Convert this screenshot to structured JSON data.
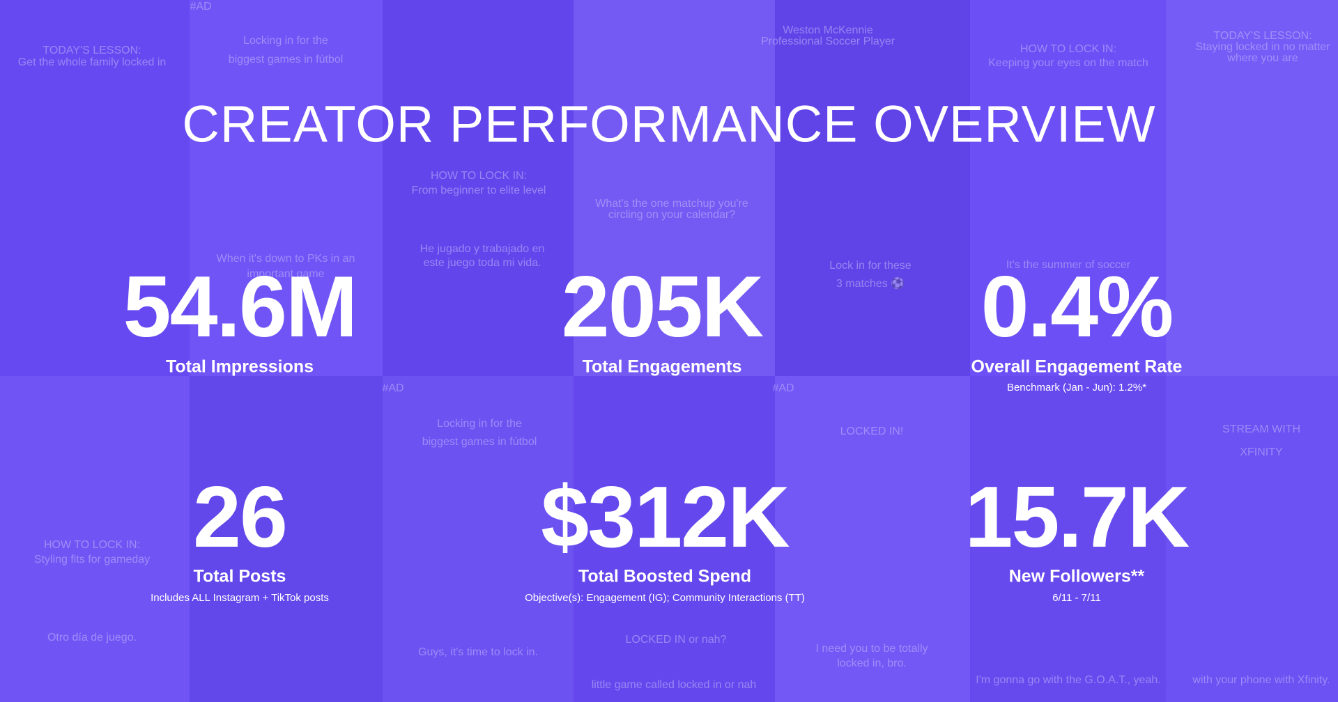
{
  "title": "CREATOR PERFORMANCE OVERVIEW",
  "metrics": [
    {
      "value": "54.6M",
      "label": "Total Impressions"
    },
    {
      "value": "205K",
      "label": "Total Engagements"
    },
    {
      "value": "0.4%",
      "label": "Overall Engagement Rate",
      "note": "Benchmark (Jan - Jun): 1.2%*"
    },
    {
      "value": "26",
      "label": "Total Posts",
      "note": "Includes ALL Instagram + TikTok posts"
    },
    {
      "value": "$312K",
      "label": "Total Boosted Spend",
      "note": "Objective(s): Engagement (IG); Community Interactions (TT)"
    },
    {
      "value": "15.7K",
      "label": "New Followers**",
      "note": "6/11 - 7/11"
    }
  ],
  "background_captions": [
    "TODAY'S LESSON:",
    "Get the whole family locked in",
    "Locking in for the",
    "biggest games in fútbol",
    "When it's down to PKs in an",
    "important game",
    "HOW TO LOCK IN:",
    "From beginner to elite level",
    "He jugado y trabajado en",
    "este juego toda mi vida.",
    "What's the one matchup you're",
    "circling on your calendar?",
    "Weston McKennie",
    "Professional Soccer Player",
    "Lock in for these",
    "3 matches ⚽",
    "HOW TO LOCK IN:",
    "Keeping your eyes on the match",
    "It's the summer of soccer",
    "TODAY'S LESSON:",
    "Staying locked in no matter",
    "where you are",
    "Locking in for the",
    "biggest games in fútbol",
    "HOW TO LOCK IN:",
    "Styling fits for gameday",
    "Otro día de juego.",
    "Guys, it's time to lock in.",
    "LOCKED IN!",
    "LOCKED IN or nah?",
    "little game called locked in or nah",
    "I need you to be totally",
    "locked in, bro.",
    "STREAM WITH",
    "XFINITY",
    "with your phone with Xfinity.",
    "I'm gonna go with the G.O.A.T., yeah.",
    "#AD",
    "#AD",
    "#AD"
  ]
}
